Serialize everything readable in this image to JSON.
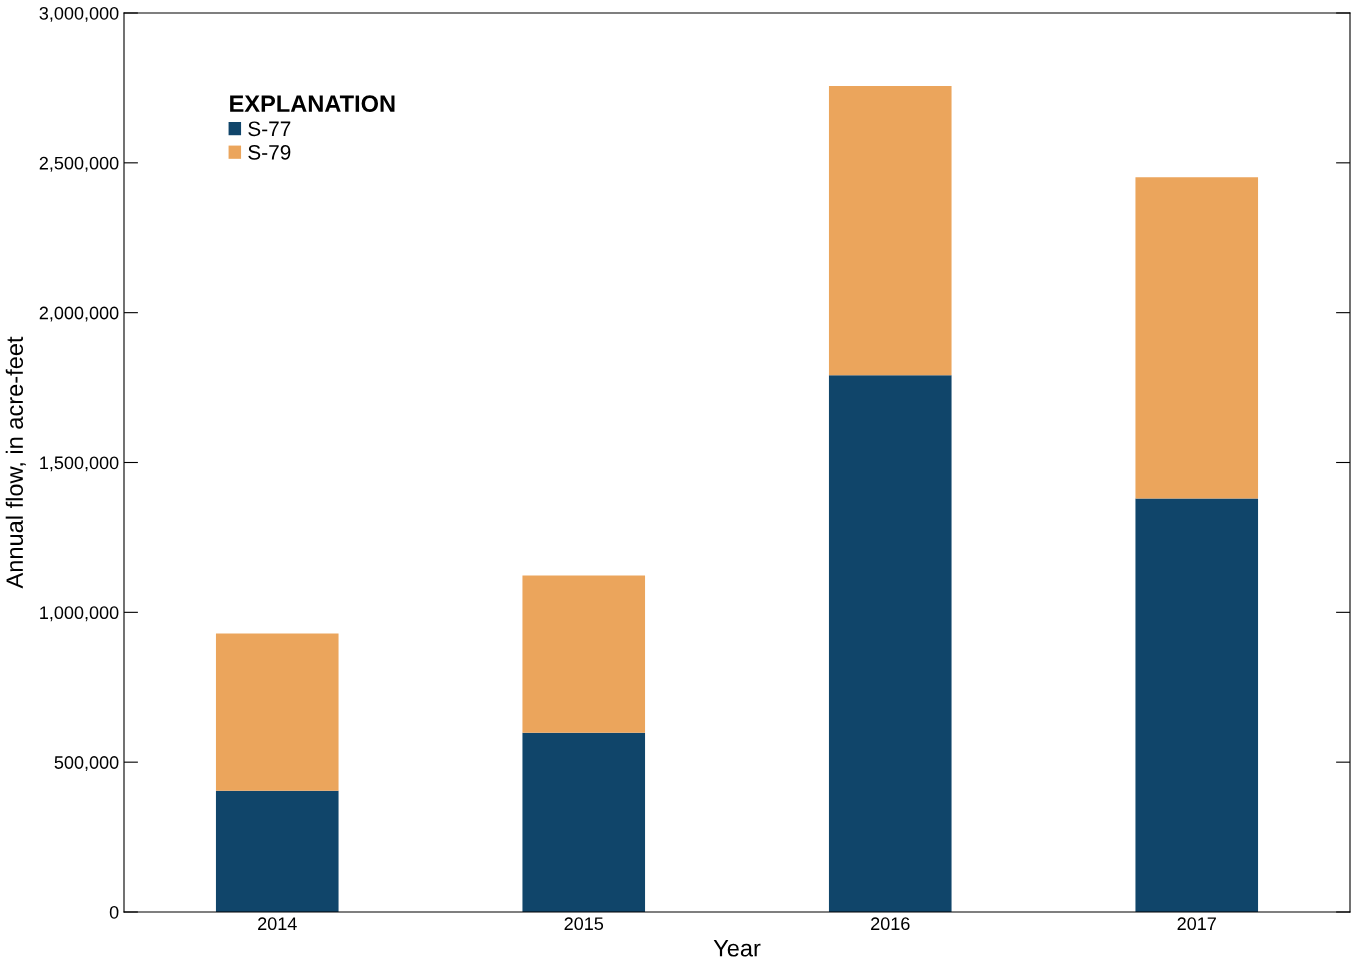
{
  "chart_data": {
    "type": "bar",
    "stacked": true,
    "xlabel": "Year",
    "ylabel": "Annual flow, in acre-feet",
    "legend_title": "EXPLANATION",
    "legend": "top left",
    "categories": [
      "2014",
      "2015",
      "2016",
      "2017"
    ],
    "series": [
      {
        "name": "S-77",
        "color": "#10456a",
        "values": [
          405000,
          598000,
          1791000,
          1380000
        ]
      },
      {
        "name": "S-79",
        "color": "#eba55c",
        "values": [
          524000,
          525000,
          965000,
          1072000
        ]
      }
    ],
    "ylim": [
      0,
      3000000
    ],
    "yticks": [
      {
        "value": 0,
        "label": "0"
      },
      {
        "value": 500000,
        "label": "500,000"
      },
      {
        "value": 1000000,
        "label": "1,000,000"
      },
      {
        "value": 1500000,
        "label": "1,500,000"
      },
      {
        "value": 2000000,
        "label": "2,000,000"
      },
      {
        "value": 2500000,
        "label": "2,500,000"
      },
      {
        "value": 3000000,
        "label": "3,000,000"
      }
    ],
    "grid": false
  }
}
